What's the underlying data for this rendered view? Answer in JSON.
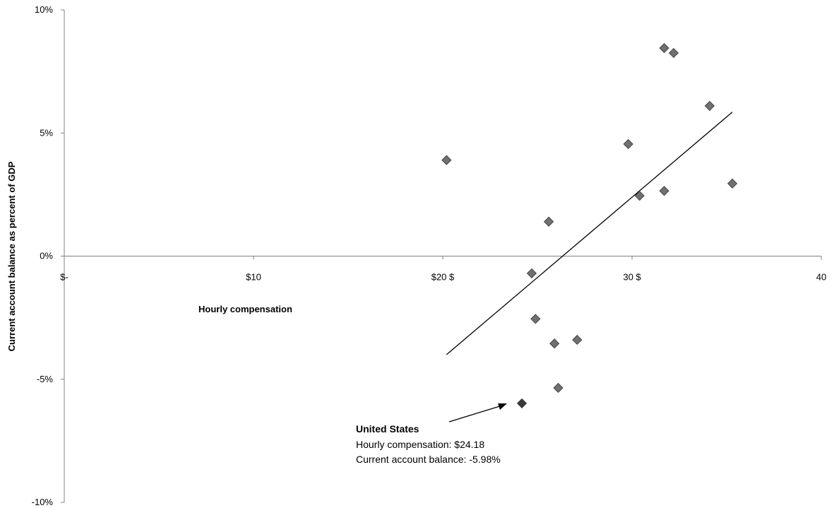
{
  "chart_data": {
    "type": "scatter",
    "title": "",
    "xlabel": "Hourly compensation",
    "ylabel": "Current account  balance  as percent of GDP",
    "xlim": [
      0,
      40
    ],
    "ylim": [
      -10,
      10
    ],
    "grid": false,
    "x_tick_labels": [
      {
        "x": 0,
        "label": "$-"
      },
      {
        "x": 10,
        "label": "$10"
      },
      {
        "x": 20,
        "label": "$20 $"
      },
      {
        "x": 30,
        "label": "30 $"
      },
      {
        "x": 40,
        "label": "40"
      }
    ],
    "y_tick_labels": [
      {
        "y": 10,
        "label": "10%"
      },
      {
        "y": 5,
        "label": "5%"
      },
      {
        "y": 0,
        "label": "0%"
      },
      {
        "y": -5,
        "label": "-5%"
      },
      {
        "y": -10,
        "label": "-10%"
      }
    ],
    "points": [
      {
        "x": 20.2,
        "y": 3.9
      },
      {
        "x": 24.7,
        "y": -0.7
      },
      {
        "x": 24.9,
        "y": -2.55
      },
      {
        "x": 25.6,
        "y": 1.4
      },
      {
        "x": 25.9,
        "y": -3.55
      },
      {
        "x": 26.1,
        "y": -5.35
      },
      {
        "x": 27.1,
        "y": -3.4
      },
      {
        "x": 29.8,
        "y": 4.55
      },
      {
        "x": 30.4,
        "y": 2.45
      },
      {
        "x": 31.7,
        "y": 8.45
      },
      {
        "x": 31.7,
        "y": 2.65
      },
      {
        "x": 32.2,
        "y": 8.25
      },
      {
        "x": 34.1,
        "y": 6.1
      },
      {
        "x": 35.3,
        "y": 2.95
      }
    ],
    "highlight_point": {
      "x": 24.18,
      "y": -5.98
    },
    "trendline": {
      "x": [
        20.2,
        35.3
      ],
      "y": [
        -4.0,
        5.85
      ]
    },
    "annotation": {
      "title": "United States",
      "line1": "Hourly compensation:  $24.18",
      "line2": "Current account balance:  -5.98%"
    },
    "colors": {
      "point": "#707070",
      "highlight": "#3a3a3a",
      "axis": "#808080",
      "line": "#000000"
    }
  }
}
